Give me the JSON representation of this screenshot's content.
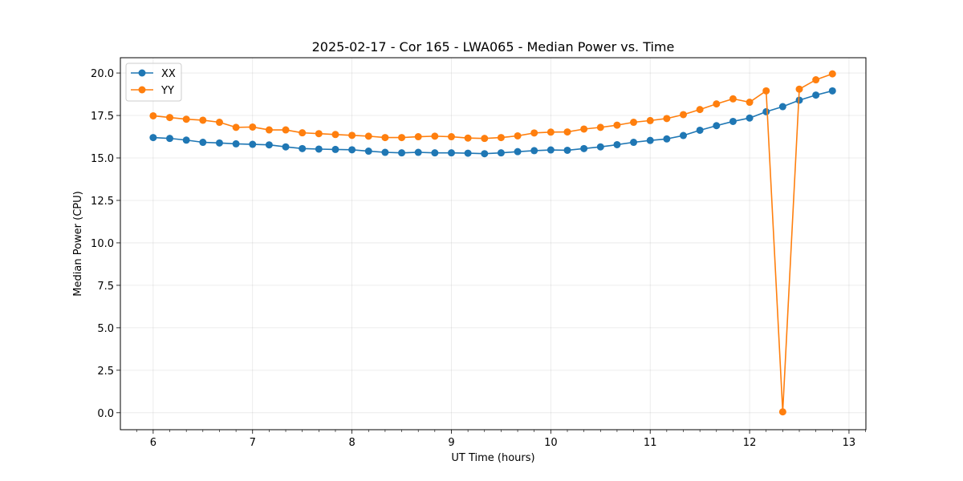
{
  "chart_data": {
    "type": "line",
    "title": "2025-02-17 - Cor 165 - LWA065 - Median Power vs. Time",
    "xlabel": "UT Time (hours)",
    "ylabel": "Median Power (CPU)",
    "xlim": [
      5.67,
      13.17
    ],
    "ylim": [
      -1.0,
      20.9
    ],
    "xticks": [
      6,
      7,
      8,
      9,
      10,
      11,
      12,
      13
    ],
    "xtick_labels": [
      "6",
      "7",
      "8",
      "9",
      "10",
      "11",
      "12",
      "13"
    ],
    "yticks": [
      0,
      2.5,
      5,
      7.5,
      10,
      12.5,
      15,
      17.5,
      20
    ],
    "ytick_labels": [
      "0.0",
      "2.5",
      "5.0",
      "7.5",
      "10.0",
      "12.5",
      "15.0",
      "17.5",
      "20.0"
    ],
    "grid": true,
    "legend_position": "top-left",
    "x": [
      6.0,
      6.1667,
      6.3333,
      6.5,
      6.6667,
      6.8333,
      7.0,
      7.1667,
      7.3333,
      7.5,
      7.6667,
      7.8333,
      8.0,
      8.1667,
      8.3333,
      8.5,
      8.6667,
      8.8333,
      9.0,
      9.1667,
      9.3333,
      9.5,
      9.6667,
      9.8333,
      10.0,
      10.1667,
      10.3333,
      10.5,
      10.6667,
      10.8333,
      11.0,
      11.1667,
      11.3333,
      11.5,
      11.6667,
      11.8333,
      12.0,
      12.1667,
      12.3333,
      12.5,
      12.6667,
      12.8333
    ],
    "series": [
      {
        "name": "XX",
        "color": "#1f77b4",
        "values": [
          16.2,
          16.15,
          16.05,
          15.92,
          15.88,
          15.83,
          15.8,
          15.77,
          15.65,
          15.55,
          15.52,
          15.5,
          15.48,
          15.4,
          15.33,
          15.3,
          15.33,
          15.3,
          15.3,
          15.28,
          15.25,
          15.3,
          15.37,
          15.43,
          15.47,
          15.45,
          15.55,
          15.65,
          15.78,
          15.92,
          16.03,
          16.12,
          16.32,
          16.63,
          16.9,
          17.15,
          17.35,
          17.72,
          18.02,
          18.4,
          18.7,
          18.95
        ]
      },
      {
        "name": "YY",
        "color": "#ff7f0e",
        "values": [
          17.48,
          17.38,
          17.28,
          17.22,
          17.1,
          16.8,
          16.82,
          16.65,
          16.65,
          16.48,
          16.43,
          16.38,
          16.33,
          16.28,
          16.2,
          16.2,
          16.25,
          16.28,
          16.25,
          16.17,
          16.15,
          16.2,
          16.3,
          16.47,
          16.52,
          16.53,
          16.7,
          16.8,
          16.93,
          17.1,
          17.2,
          17.32,
          17.55,
          17.85,
          18.18,
          18.48,
          18.28,
          18.95,
          0.05,
          19.05,
          19.6,
          19.95
        ]
      }
    ]
  }
}
